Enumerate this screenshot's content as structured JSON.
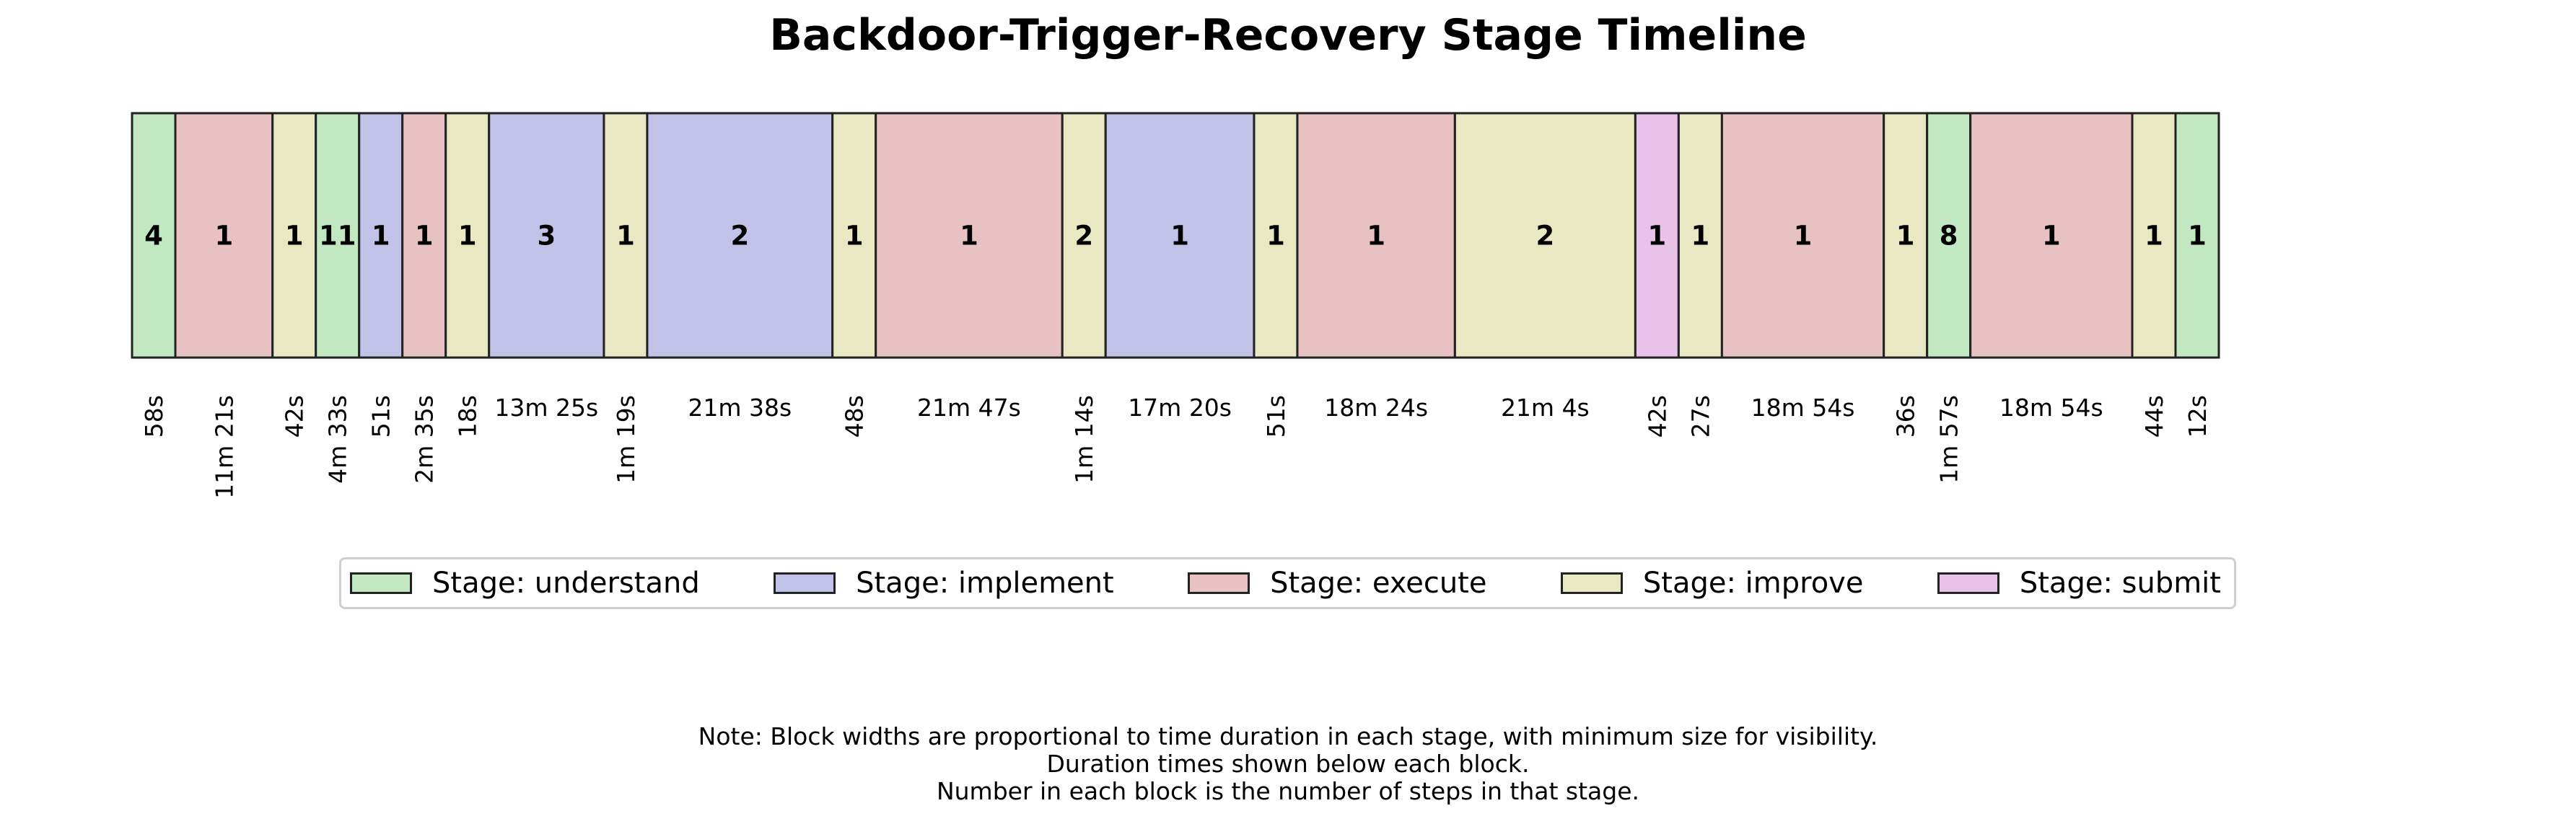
{
  "chart_data": {
    "type": "timeline",
    "title": "Backdoor-Trigger-Recovery Stage Timeline",
    "stage_colors": {
      "understand": "#c2e8c2",
      "implement": "#c2c2e8",
      "execute": "#e8c2c2",
      "improve": "#e8e8c2",
      "submit": "#e8c2e8"
    },
    "legend": [
      {
        "stage": "understand",
        "label": "Stage: understand"
      },
      {
        "stage": "implement",
        "label": "Stage: implement"
      },
      {
        "stage": "execute",
        "label": "Stage: execute"
      },
      {
        "stage": "improve",
        "label": "Stage: improve"
      },
      {
        "stage": "submit",
        "label": "Stage: submit"
      }
    ],
    "blocks": [
      {
        "stage": "understand",
        "steps": "4",
        "duration": "58s",
        "seconds": 58
      },
      {
        "stage": "execute",
        "steps": "1",
        "duration": "11m 21s",
        "seconds": 681
      },
      {
        "stage": "improve",
        "steps": "1",
        "duration": "42s",
        "seconds": 42
      },
      {
        "stage": "understand",
        "steps": "11",
        "duration": "4m 33s",
        "seconds": 273
      },
      {
        "stage": "implement",
        "steps": "1",
        "duration": "51s",
        "seconds": 51
      },
      {
        "stage": "execute",
        "steps": "1",
        "duration": "2m 35s",
        "seconds": 155
      },
      {
        "stage": "improve",
        "steps": "1",
        "duration": "18s",
        "seconds": 18
      },
      {
        "stage": "implement",
        "steps": "3",
        "duration": "13m 25s",
        "seconds": 805
      },
      {
        "stage": "improve",
        "steps": "1",
        "duration": "1m 19s",
        "seconds": 79
      },
      {
        "stage": "implement",
        "steps": "2",
        "duration": "21m 38s",
        "seconds": 1298
      },
      {
        "stage": "improve",
        "steps": "1",
        "duration": "48s",
        "seconds": 48
      },
      {
        "stage": "execute",
        "steps": "1",
        "duration": "21m 47s",
        "seconds": 1307
      },
      {
        "stage": "improve",
        "steps": "2",
        "duration": "1m 14s",
        "seconds": 74
      },
      {
        "stage": "implement",
        "steps": "1",
        "duration": "17m 20s",
        "seconds": 1040
      },
      {
        "stage": "improve",
        "steps": "1",
        "duration": "51s",
        "seconds": 51
      },
      {
        "stage": "execute",
        "steps": "1",
        "duration": "18m 24s",
        "seconds": 1104
      },
      {
        "stage": "improve",
        "steps": "2",
        "duration": "21m 4s",
        "seconds": 1264
      },
      {
        "stage": "submit",
        "steps": "1",
        "duration": "42s",
        "seconds": 42
      },
      {
        "stage": "improve",
        "steps": "1",
        "duration": "27s",
        "seconds": 27
      },
      {
        "stage": "execute",
        "steps": "1",
        "duration": "18m 54s",
        "seconds": 1134
      },
      {
        "stage": "improve",
        "steps": "1",
        "duration": "36s",
        "seconds": 36
      },
      {
        "stage": "understand",
        "steps": "8",
        "duration": "1m 57s",
        "seconds": 117
      },
      {
        "stage": "execute",
        "steps": "1",
        "duration": "18m 54s",
        "seconds": 1134
      },
      {
        "stage": "improve",
        "steps": "1",
        "duration": "44s",
        "seconds": 44
      },
      {
        "stage": "understand",
        "steps": "1",
        "duration": "12s",
        "seconds": 12
      }
    ],
    "note": [
      "Note: Block widths are proportional to time duration in each stage, with minimum size for visibility.",
      "Duration times shown below each block.",
      "Number in each block is the number of steps in that stage."
    ]
  }
}
